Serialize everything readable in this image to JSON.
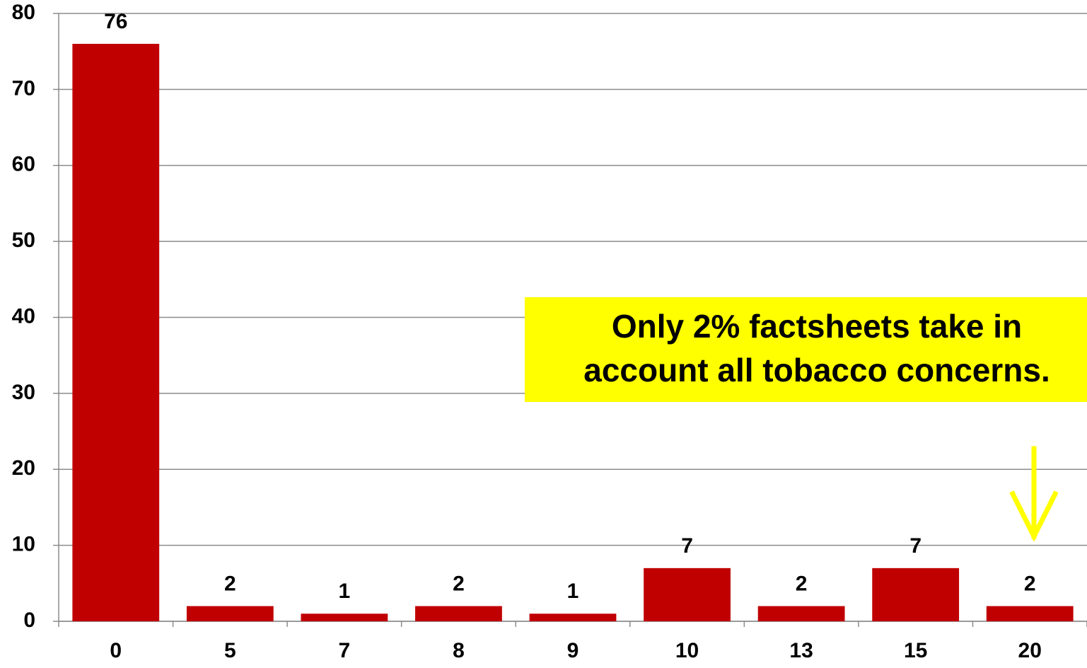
{
  "chart_data": {
    "type": "bar",
    "categories": [
      "0",
      "5",
      "7",
      "8",
      "9",
      "10",
      "13",
      "15",
      "20"
    ],
    "values": [
      76,
      2,
      1,
      2,
      1,
      7,
      2,
      7,
      2
    ],
    "color": "#c00000",
    "ylim": [
      0,
      80
    ],
    "yticks": [
      0,
      10,
      20,
      30,
      40,
      50,
      60,
      70,
      80
    ],
    "grid": true,
    "annotation": {
      "lines": [
        "Only 2% factsheets take in",
        "account all tobacco concerns."
      ],
      "color": "#ffff00"
    }
  }
}
